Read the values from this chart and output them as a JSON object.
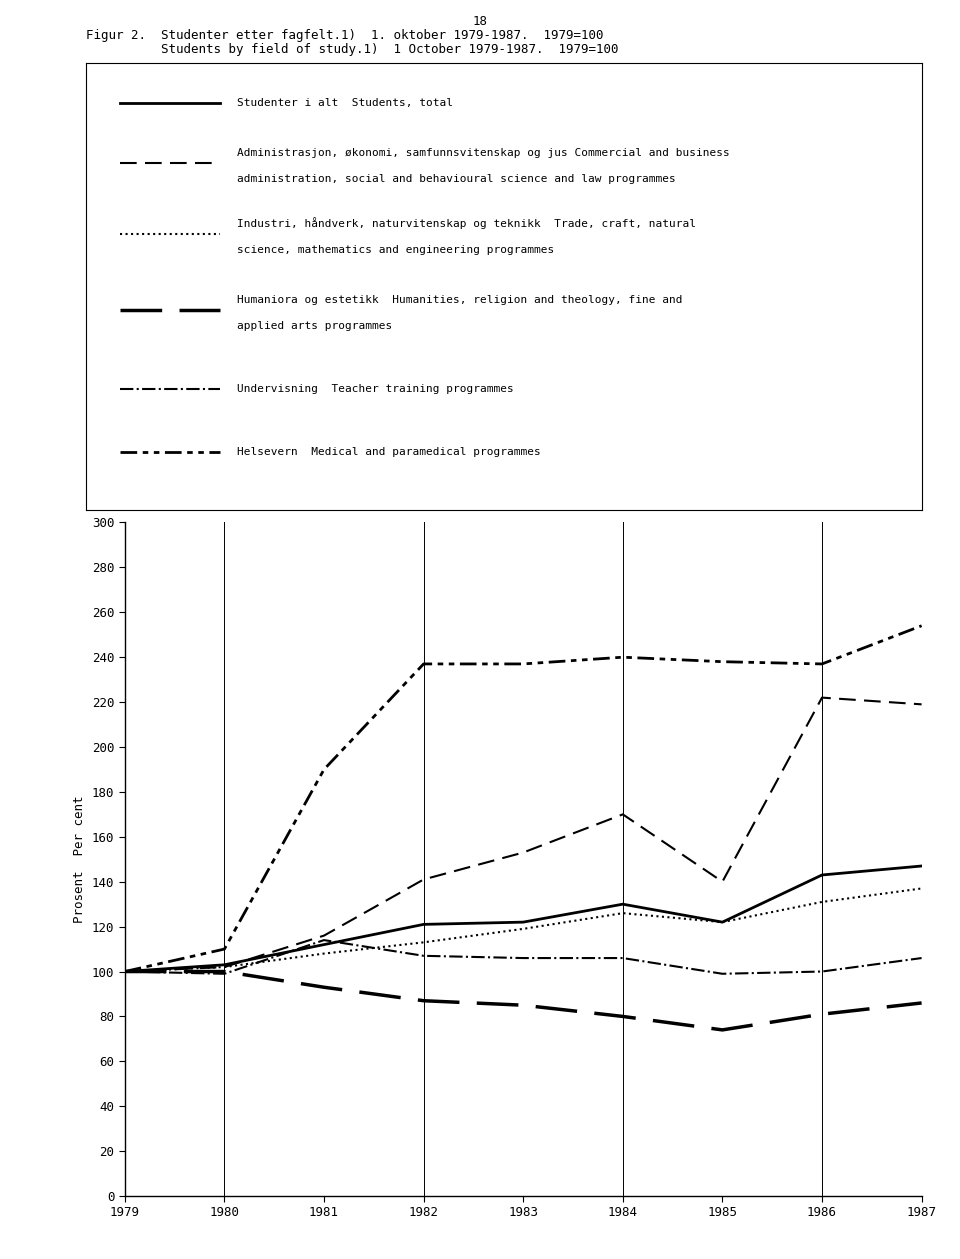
{
  "page_number": "18",
  "title_line1": "Figur 2.  Studenter etter fagfelt.1)  1. oktober 1979-1987.  1979=100",
  "title_line2": "          Students by field of study.1)  1 October 1979-1987.  1979=100",
  "years": [
    1979,
    1980,
    1981,
    1982,
    1983,
    1984,
    1985,
    1986,
    1987
  ],
  "series": {
    "students_total": {
      "values": [
        100,
        103,
        112,
        121,
        122,
        130,
        122,
        143,
        147
      ],
      "linewidth": 2.0,
      "linestyle": "solid"
    },
    "admin": {
      "values": [
        100,
        102,
        116,
        141,
        153,
        170,
        140,
        222,
        219
      ],
      "linewidth": 1.5,
      "linestyle": "dashed",
      "dashes": [
        8,
        4
      ]
    },
    "industri": {
      "values": [
        100,
        102,
        108,
        113,
        119,
        126,
        122,
        131,
        137
      ],
      "linewidth": 1.5,
      "linestyle": "dotted"
    },
    "humaniora": {
      "values": [
        100,
        100,
        93,
        87,
        85,
        80,
        74,
        81,
        86
      ],
      "linewidth": 2.5,
      "linestyle": "longdash",
      "dashes": [
        12,
        5
      ]
    },
    "undervisning": {
      "values": [
        100,
        99,
        114,
        107,
        106,
        106,
        99,
        100,
        106
      ],
      "linewidth": 1.5,
      "linestyle": "dashdot"
    },
    "helsevern": {
      "values": [
        100,
        110,
        190,
        237,
        237,
        240,
        238,
        237,
        254
      ],
      "linewidth": 2.0,
      "linestyle": "dashdotdot",
      "dashes": [
        6,
        2,
        2,
        2,
        2,
        2
      ]
    }
  },
  "legend_items": [
    {
      "key": "students_total",
      "text_line1": "Studenter i alt  Students, total",
      "text_line2": null
    },
    {
      "key": "admin",
      "text_line1": "Administrasjon, økonomi, samfunnsvitenskap og jus Commercial and business",
      "text_line2": "administration, social and behavioural science and law programmes"
    },
    {
      "key": "industri",
      "text_line1": "Industri, håndverk, naturvitenskap og teknikk  Trade, craft, natural",
      "text_line2": "science, mathematics and engineering programmes"
    },
    {
      "key": "humaniora",
      "text_line1": "Humaniora og estetikk  Humanities, religion and theology, fine and",
      "text_line2": "applied arts programmes"
    },
    {
      "key": "undervisning",
      "text_line1": "Undervisning  Teacher training programmes",
      "text_line2": null
    },
    {
      "key": "helsevern",
      "text_line1": "Helsevern  Medical and paramedical programmes",
      "text_line2": null
    }
  ],
  "ylim": [
    0,
    300
  ],
  "yticks": [
    0,
    20,
    40,
    60,
    80,
    100,
    120,
    140,
    160,
    180,
    200,
    220,
    240,
    260,
    280,
    300
  ],
  "ylabel": "Prosent  Per cent",
  "vlines": [
    1980,
    1982,
    1984,
    1986
  ],
  "background_color": "white",
  "font_size": 9,
  "title_font_size": 9
}
